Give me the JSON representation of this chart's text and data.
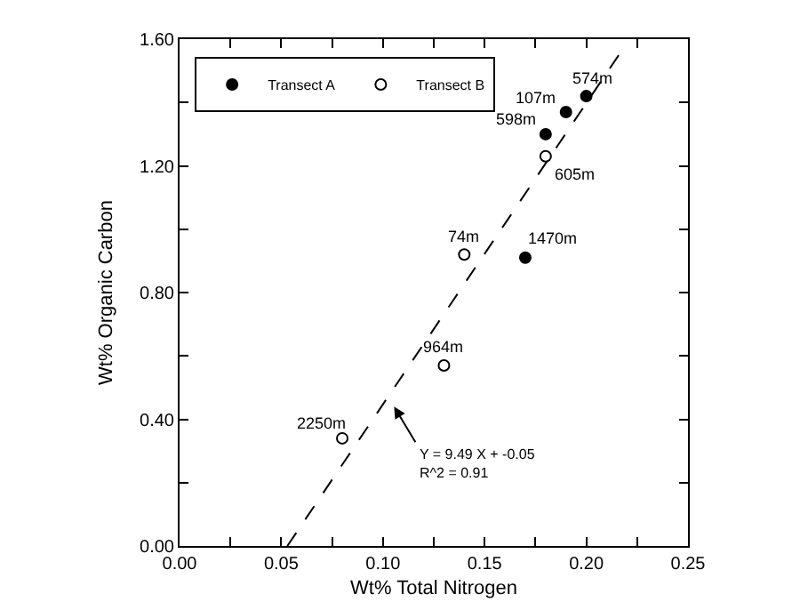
{
  "chart_data": {
    "type": "scatter",
    "xlabel": "Wt% Total Nitrogen",
    "ylabel": "Wt% Organic Carbon",
    "series": [
      {
        "name": "Transect A",
        "marker": "circle",
        "color": "#000000",
        "x": [
          0.2,
          0.19,
          0.18,
          0.17
        ],
        "values": [
          1.42,
          1.37,
          1.3,
          0.91
        ]
      },
      {
        "name": "Transect B",
        "marker": "circle",
        "color": "#ffffff",
        "x": [
          0.18,
          0.14,
          0.13,
          0.08
        ],
        "values": [
          1.23,
          0.92,
          0.57,
          0.34
        ]
      },
      {
        "type": "line",
        "line_style": "dashed",
        "marker": "none",
        "color": "#000000",
        "x": [
          0.053,
          0.216
        ],
        "values": [
          0.0,
          1.55
        ]
      }
    ],
    "annotations": [
      {
        "text": "574m",
        "x": 0.2,
        "y": 1.42
      },
      {
        "text": "107m",
        "x": 0.19,
        "y": 1.37
      },
      {
        "text": "598m",
        "x": 0.18,
        "y": 1.3
      },
      {
        "text": "605m",
        "x": 0.18,
        "y": 1.23
      },
      {
        "text": "74m",
        "x": 0.14,
        "y": 0.92
      },
      {
        "text": "1470m",
        "x": 0.17,
        "y": 0.91
      },
      {
        "text": "964m",
        "x": 0.13,
        "y": 0.57
      },
      {
        "text": "2250m",
        "x": 0.08,
        "y": 0.34
      },
      "Y = 9.49 X + -0.05\nR^2 = 0.91"
    ],
    "xlim": [
      0,
      0.25
    ],
    "ylim": [
      0,
      1.6
    ],
    "xticks": [
      {
        "value": 0,
        "label": "0.00"
      },
      {
        "value": 0.025,
        "label": null
      },
      {
        "value": 0.05,
        "label": "0.05"
      },
      {
        "value": 0.075,
        "label": null
      },
      {
        "value": 0.1,
        "label": "0.10"
      },
      {
        "value": 0.125,
        "label": null
      },
      {
        "value": 0.15,
        "label": "0.15"
      },
      {
        "value": 0.175,
        "label": null
      },
      {
        "value": 0.2,
        "label": "0.20"
      },
      {
        "value": 0.225,
        "label": null
      },
      {
        "value": 0.25,
        "label": "0.25"
      }
    ],
    "yticks": [
      {
        "value": 0,
        "label": "0.00"
      },
      {
        "value": 0.2,
        "label": null
      },
      {
        "value": 0.4,
        "label": "0.40"
      },
      {
        "value": 0.6,
        "label": null
      },
      {
        "value": 0.8,
        "label": "0.80"
      },
      {
        "value": 1.0,
        "label": null
      },
      {
        "value": 1.2,
        "label": "1.20"
      },
      {
        "value": 1.4,
        "label": null
      },
      {
        "value": 1.6,
        "label": "1.60"
      }
    ],
    "legend": "top left"
  }
}
